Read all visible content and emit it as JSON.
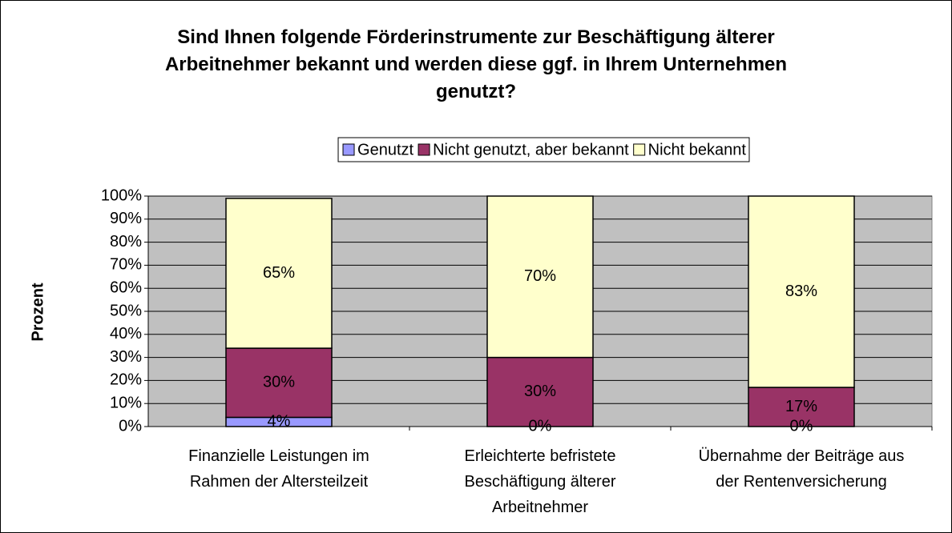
{
  "chart_data": {
    "type": "stacked_bar",
    "title": "Sind Ihnen folgende Förderinstrumente zur Beschäftigung älterer\nArbeitnehmer bekannt und werden diese ggf. in Ihrem Unternehmen\ngenutzt?",
    "y_label": "Prozent",
    "categories": [
      "Finanzielle Leistungen im\nRahmen der Altersteilzeit",
      "Erleichterte befristete\nBeschäftigung älterer\nArbeitnehmer",
      "Übernahme der Beiträge aus\nder Rentenversicherung"
    ],
    "series": [
      {
        "name": "Genutzt",
        "color": "#9999ff",
        "values": [
          4,
          0,
          0
        ],
        "value_labels": [
          "4%",
          "0%",
          "0%"
        ]
      },
      {
        "name": "Nicht genutzt, aber bekannt",
        "color": "#993366",
        "values": [
          30,
          30,
          17
        ],
        "value_labels": [
          "30%",
          "30%",
          "17%"
        ]
      },
      {
        "name": "Nicht bekannt",
        "color": "#ffffcc",
        "values": [
          65,
          70,
          83
        ],
        "value_labels": [
          "65%",
          "70%",
          "83%"
        ]
      }
    ],
    "ylim": [
      0,
      100
    ],
    "yticks": [
      {
        "value": 0,
        "label": "0%"
      },
      {
        "value": 10,
        "label": "10%"
      },
      {
        "value": 20,
        "label": "20%"
      },
      {
        "value": 30,
        "label": "30%"
      },
      {
        "value": 40,
        "label": "40%"
      },
      {
        "value": 50,
        "label": "50%"
      },
      {
        "value": 60,
        "label": "60%"
      },
      {
        "value": 70,
        "label": "70%"
      },
      {
        "value": 80,
        "label": "80%"
      },
      {
        "value": 90,
        "label": "90%"
      },
      {
        "value": 100,
        "label": "100%"
      }
    ],
    "grid": true,
    "legend": "top"
  }
}
